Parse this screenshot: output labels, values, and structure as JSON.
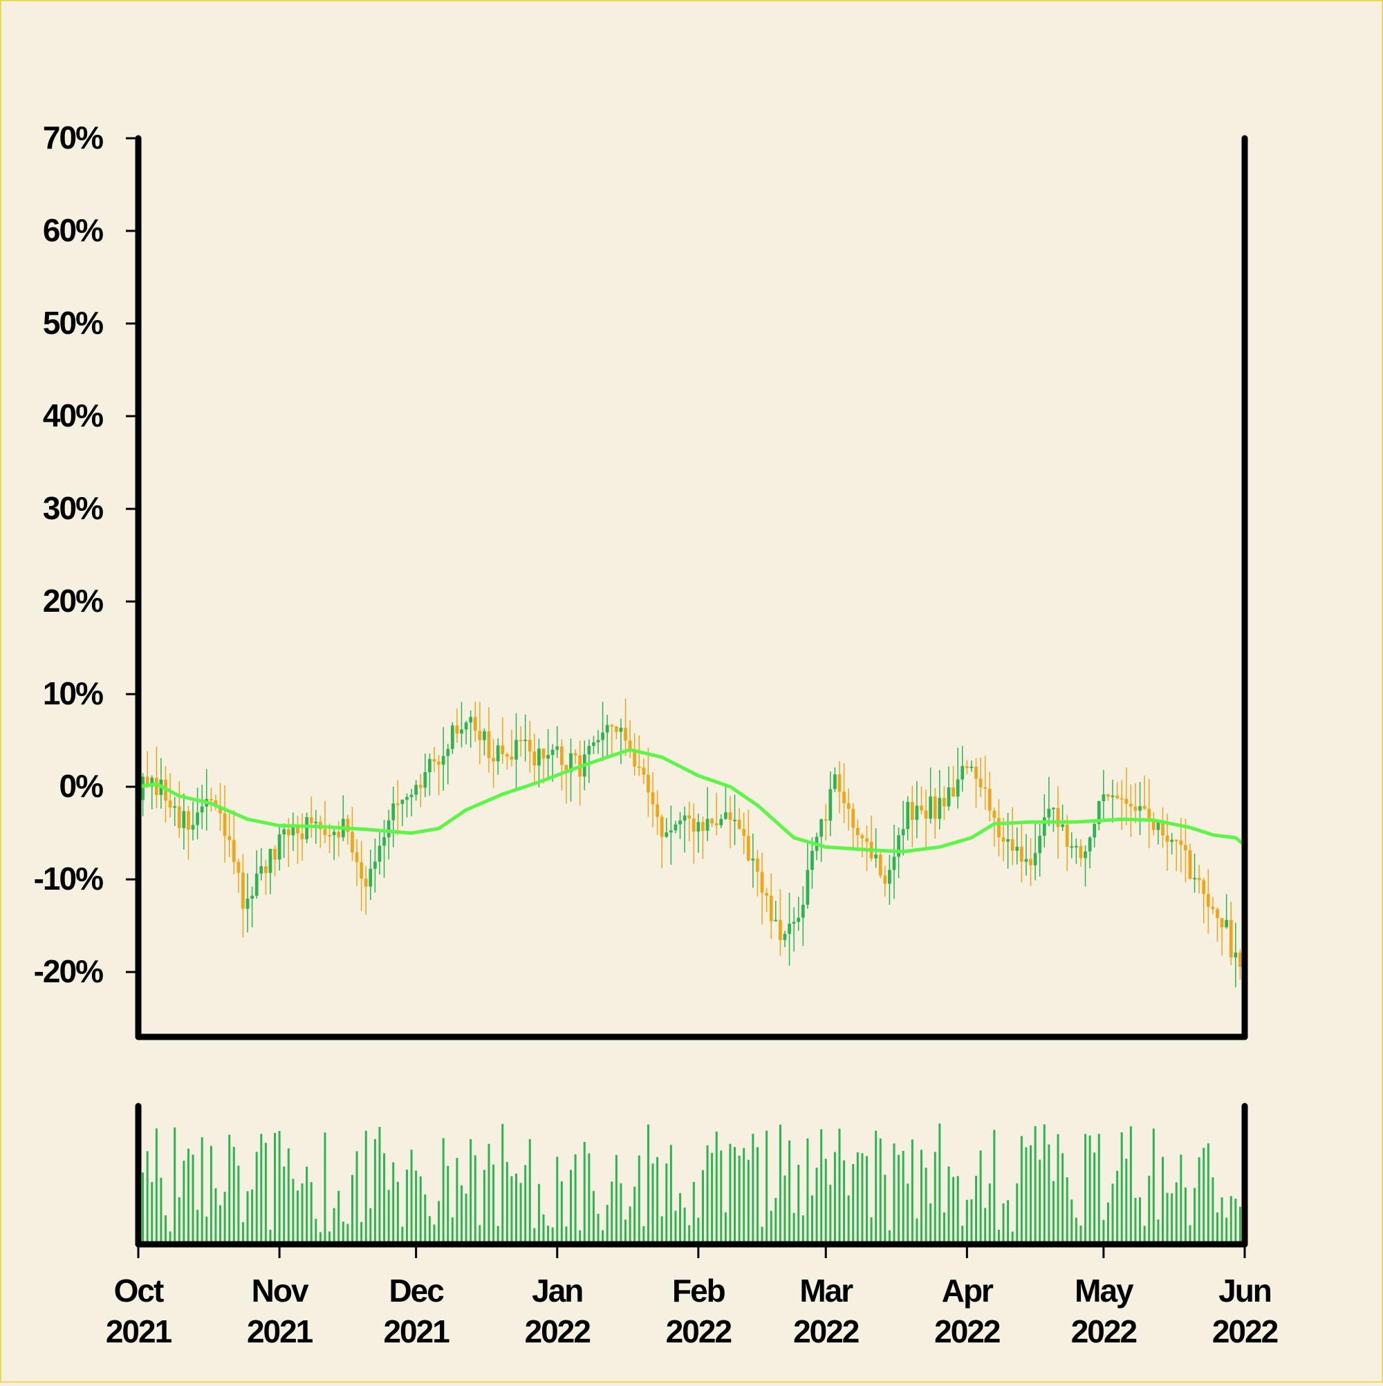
{
  "chart_data": {
    "type": "candlestick",
    "x_range": [
      "2021-10-01",
      "2022-06-01"
    ],
    "y_unit": "%",
    "ylim": [
      -27,
      70
    ],
    "y_ticks": [
      -20,
      -10,
      0,
      10,
      20,
      30,
      40,
      50,
      60,
      70
    ],
    "y_tick_labels": [
      "-20%",
      "-10%",
      "0%",
      "10%",
      "20%",
      "30%",
      "40%",
      "50%",
      "60%",
      "70%"
    ],
    "x_ticks": [
      "2021-10-01",
      "2021-11-01",
      "2021-12-01",
      "2022-01-01",
      "2022-02-01",
      "2022-03-01",
      "2022-04-01",
      "2022-05-01",
      "2022-06-01"
    ],
    "x_tick_labels": [
      [
        "Oct",
        "2021"
      ],
      [
        "Nov",
        "2021"
      ],
      [
        "Dec",
        "2021"
      ],
      [
        "Jan",
        "2022"
      ],
      [
        "Feb",
        "2022"
      ],
      [
        "Mar",
        "2022"
      ],
      [
        "Apr",
        "2022"
      ],
      [
        "May",
        "2022"
      ],
      [
        "Jun",
        "2022"
      ]
    ],
    "close_path": [
      [
        "2021-10-01",
        0
      ],
      [
        "2021-10-08",
        -1
      ],
      [
        "2021-10-12",
        -5
      ],
      [
        "2021-10-16",
        -1
      ],
      [
        "2021-10-20",
        -5
      ],
      [
        "2021-10-24",
        -12
      ],
      [
        "2021-10-29",
        -9
      ],
      [
        "2021-11-03",
        -5
      ],
      [
        "2021-11-09",
        -4
      ],
      [
        "2021-11-15",
        -4
      ],
      [
        "2021-11-20",
        -10
      ],
      [
        "2021-11-25",
        -3
      ],
      [
        "2021-11-30",
        -2
      ],
      [
        "2021-12-04",
        2
      ],
      [
        "2021-12-10",
        6
      ],
      [
        "2021-12-13",
        8
      ],
      [
        "2021-12-18",
        3
      ],
      [
        "2021-12-25",
        4
      ],
      [
        "2022-01-01",
        3
      ],
      [
        "2022-01-05",
        2
      ],
      [
        "2022-01-10",
        5
      ],
      [
        "2022-01-15",
        6
      ],
      [
        "2022-01-20",
        0
      ],
      [
        "2022-01-25",
        -5
      ],
      [
        "2022-02-03",
        -4
      ],
      [
        "2022-02-08",
        -3
      ],
      [
        "2022-02-14",
        -10
      ],
      [
        "2022-02-19",
        -17
      ],
      [
        "2022-02-22",
        -15
      ],
      [
        "2022-02-27",
        -6
      ],
      [
        "2022-03-03",
        0
      ],
      [
        "2022-03-09",
        -5
      ],
      [
        "2022-03-14",
        -10
      ],
      [
        "2022-03-19",
        -3
      ],
      [
        "2022-03-26",
        -2
      ],
      [
        "2022-03-31",
        2
      ],
      [
        "2022-04-04",
        0
      ],
      [
        "2022-04-09",
        -5
      ],
      [
        "2022-04-14",
        -8
      ],
      [
        "2022-04-20",
        -3
      ],
      [
        "2022-04-26",
        -7
      ],
      [
        "2022-04-30",
        -3
      ],
      [
        "2022-05-03",
        0
      ],
      [
        "2022-05-09",
        -2
      ],
      [
        "2022-05-13",
        -5
      ],
      [
        "2022-05-17",
        -6
      ],
      [
        "2022-05-21",
        -10
      ],
      [
        "2022-05-25",
        -12
      ],
      [
        "2022-05-29",
        -17
      ],
      [
        "2022-06-01",
        -19
      ]
    ],
    "moving_average": [
      [
        "2021-10-01",
        0
      ],
      [
        "2021-10-05",
        0.3
      ],
      [
        "2021-10-10",
        -1
      ],
      [
        "2021-10-17",
        -1.8
      ],
      [
        "2021-10-25",
        -3.5
      ],
      [
        "2021-11-01",
        -4.2
      ],
      [
        "2021-11-10",
        -4.3
      ],
      [
        "2021-11-20",
        -4.6
      ],
      [
        "2021-11-30",
        -5
      ],
      [
        "2021-12-06",
        -4.5
      ],
      [
        "2021-12-12",
        -2.5
      ],
      [
        "2021-12-20",
        -0.8
      ],
      [
        "2021-12-28",
        0.5
      ],
      [
        "2022-01-05",
        2
      ],
      [
        "2022-01-12",
        3.2
      ],
      [
        "2022-01-17",
        4
      ],
      [
        "2022-01-24",
        3.2
      ],
      [
        "2022-02-01",
        1.2
      ],
      [
        "2022-02-08",
        0
      ],
      [
        "2022-02-14",
        -2
      ],
      [
        "2022-02-22",
        -5.5
      ],
      [
        "2022-03-01",
        -6.5
      ],
      [
        "2022-03-10",
        -6.8
      ],
      [
        "2022-03-18",
        -7
      ],
      [
        "2022-03-26",
        -6.5
      ],
      [
        "2022-04-02",
        -5.5
      ],
      [
        "2022-04-07",
        -4
      ],
      [
        "2022-04-15",
        -3.8
      ],
      [
        "2022-04-25",
        -3.8
      ],
      [
        "2022-05-05",
        -3.5
      ],
      [
        "2022-05-12",
        -3.6
      ],
      [
        "2022-05-20",
        -4.4
      ],
      [
        "2022-05-25",
        -5.2
      ],
      [
        "2022-05-30",
        -5.5
      ],
      [
        "2022-06-01",
        -6.3
      ]
    ],
    "volume_scale": [
      0,
      1
    ],
    "grid": false,
    "legend": "none",
    "colors": {
      "up": "#2bb44f",
      "down": "#f0a418",
      "moving_average": "#5cf548",
      "volume": "#2bb44f",
      "axes": "#000000",
      "background": "#f5f0e0",
      "border": "#e6d233"
    }
  }
}
